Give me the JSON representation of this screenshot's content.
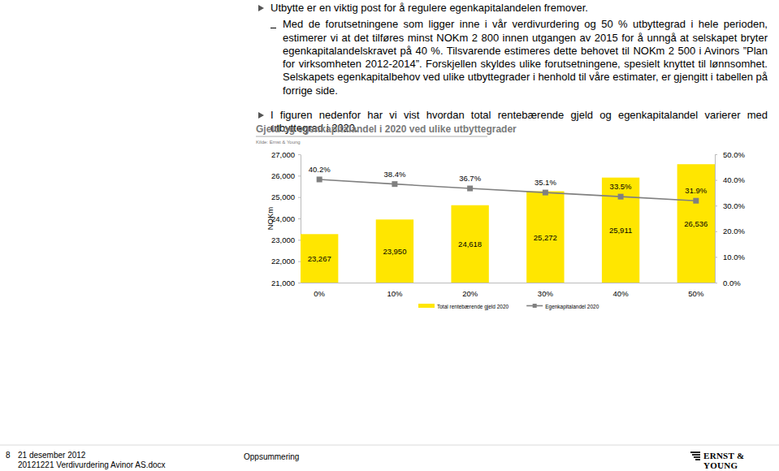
{
  "page": {
    "bullets": [
      {
        "text": "Utbytte er en viktig post for å regulere egenkapitalandelen fremover.",
        "subitems": [
          "Med de forutsetningene som ligger inne i vår verdivurdering og 50 % utbyttegrad i hele perioden, estimerer vi at det tilføres minst NOKm 2 800 innen utgangen av 2015 for å unngå at selskapet bryter egenkapitalandelskravet på 40 %. Tilsvarende estimeres dette behovet til NOKm 2 500 i Avinors ”Plan for virksomheten 2012-2014”. Forskjellen skyldes ulike forutsetningene, spesielt knyttet til lønnsomhet. Selskapets egenkapitalbehov ved ulike utbyttegrader i henhold til våre estimater, er gjengitt i tabellen på forrige side."
        ]
      },
      {
        "text": "I figuren nedenfor har vi vist hvordan total rentebærende gjeld og egenkapitalandel varierer med utbyttegrad i 2020.",
        "subitems": []
      }
    ],
    "footer": {
      "page_number": "8",
      "date": "21 desember 2012",
      "file": "20121221 Verdivurdering Avinor AS.docx",
      "section": "Oppsummering",
      "logo": "ERNST & YOUNG"
    }
  },
  "chart_data": {
    "type": "bar",
    "title": "Gjeld og egenkapitalandel i 2020 ved ulike utbyttegrader",
    "subtitle": "Kilde: Ernst & Young",
    "ylabel": "NOKm",
    "categories": [
      "0%",
      "10%",
      "20%",
      "30%",
      "40%",
      "50%"
    ],
    "series": [
      {
        "name": "Total rentebærende gjeld 2020",
        "type": "bar",
        "color": "#FFE600",
        "values": [
          23267,
          23950,
          24618,
          25272,
          25911,
          26536
        ],
        "value_labels": [
          "23,267",
          "23,950",
          "24,618",
          "25,272",
          "25,911",
          "26,536"
        ]
      },
      {
        "name": "Egenkapitalandel 2020",
        "type": "line",
        "color": "#808080",
        "axis": "y2",
        "marker": "square",
        "values": [
          40.2,
          38.4,
          36.7,
          35.1,
          33.5,
          31.9
        ],
        "value_labels": [
          "40.2%",
          "38.4%",
          "36.7%",
          "35.1%",
          "33.5%",
          "31.9%"
        ]
      }
    ],
    "ylim": [
      21000,
      27000
    ],
    "yticks": [
      {
        "value": 21000,
        "label": "21,000"
      },
      {
        "value": 22000,
        "label": "22,000"
      },
      {
        "value": 23000,
        "label": "23,000"
      },
      {
        "value": 24000,
        "label": "24,000"
      },
      {
        "value": 25000,
        "label": "25,000"
      },
      {
        "value": 26000,
        "label": "26,000"
      },
      {
        "value": 27000,
        "label": "27,000"
      }
    ],
    "y2lim": [
      0,
      50
    ],
    "y2ticks": [
      {
        "value": 0,
        "label": "0.0%"
      },
      {
        "value": 10,
        "label": "10.0%"
      },
      {
        "value": 20,
        "label": "20.0%"
      },
      {
        "value": 30,
        "label": "30.0%"
      },
      {
        "value": 40,
        "label": "40.0%"
      },
      {
        "value": 50,
        "label": "50.0%"
      }
    ],
    "data_labels": true,
    "legend": "bottom",
    "grid": false
  }
}
